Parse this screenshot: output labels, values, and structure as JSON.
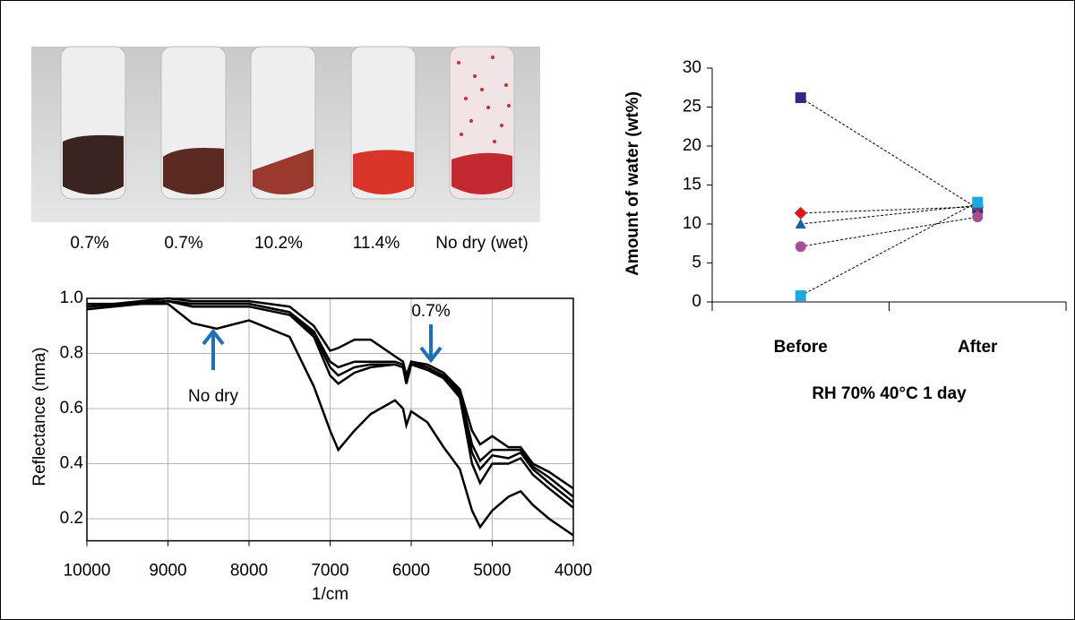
{
  "photo": {
    "labels": [
      "0.7%",
      "0.7%",
      "10.2%",
      "11.4%",
      "No dry (wet)"
    ]
  },
  "chart_data": [
    {
      "type": "line",
      "xlabel": "1/cm",
      "ylabel": "Reflectance (nma)",
      "x": [
        10000,
        9000,
        8700,
        8400,
        8000,
        7500,
        7200,
        7000,
        6900,
        6700,
        6500,
        6200,
        6100,
        6060,
        6000,
        5800,
        5600,
        5400,
        5250,
        5150,
        5000,
        4800,
        4650,
        4500,
        4300,
        4000
      ],
      "series": [
        {
          "color": "#000000",
          "values": [
            0.98,
            0.98,
            0.91,
            0.89,
            0.92,
            0.86,
            0.68,
            0.52,
            0.45,
            0.52,
            0.58,
            0.63,
            0.6,
            0.54,
            0.59,
            0.55,
            0.46,
            0.38,
            0.23,
            0.17,
            0.23,
            0.28,
            0.3,
            0.25,
            0.2,
            0.14
          ]
        },
        {
          "color": "#000000",
          "values": [
            0.97,
            1.0,
            0.99,
            0.99,
            0.99,
            0.97,
            0.9,
            0.81,
            0.82,
            0.85,
            0.85,
            0.79,
            0.77,
            0.72,
            0.77,
            0.76,
            0.73,
            0.67,
            0.52,
            0.47,
            0.5,
            0.46,
            0.46,
            0.4,
            0.37,
            0.31
          ]
        },
        {
          "color": "#000000",
          "values": [
            0.97,
            0.99,
            0.98,
            0.98,
            0.98,
            0.95,
            0.88,
            0.77,
            0.75,
            0.77,
            0.77,
            0.77,
            0.76,
            0.7,
            0.77,
            0.75,
            0.72,
            0.66,
            0.47,
            0.41,
            0.45,
            0.45,
            0.45,
            0.39,
            0.35,
            0.28
          ]
        },
        {
          "color": "#000000",
          "values": [
            0.97,
            0.99,
            0.98,
            0.98,
            0.98,
            0.95,
            0.87,
            0.75,
            0.72,
            0.75,
            0.76,
            0.76,
            0.75,
            0.69,
            0.76,
            0.75,
            0.71,
            0.65,
            0.44,
            0.38,
            0.43,
            0.42,
            0.44,
            0.38,
            0.33,
            0.26
          ]
        },
        {
          "color": "#000000",
          "values": [
            0.96,
            0.99,
            0.97,
            0.97,
            0.97,
            0.94,
            0.86,
            0.72,
            0.69,
            0.73,
            0.75,
            0.76,
            0.75,
            0.69,
            0.76,
            0.74,
            0.71,
            0.64,
            0.4,
            0.33,
            0.4,
            0.4,
            0.42,
            0.36,
            0.31,
            0.24
          ]
        }
      ],
      "xlim": [
        10000,
        4000
      ],
      "ylim": [
        0.12,
        1.0
      ],
      "xticks": [
        10000,
        9000,
        8000,
        7000,
        6000,
        5000,
        4000
      ],
      "yticks": [
        {
          "value": 1,
          "label": "1.0"
        },
        0.8,
        0.6,
        0.4,
        0.2
      ],
      "grid": true,
      "annotations": [
        "0.7%",
        "No dry"
      ],
      "annotation_color": "#1f6fb5"
    },
    {
      "type": "line",
      "xlabel": "RH 70% 40°C 1 day",
      "ylabel": "Amount of water (wt%)",
      "categories": [
        "Before",
        "After"
      ],
      "series": [
        {
          "color": "#2e2a85",
          "marker": "square",
          "values": [
            26.2,
            12.0
          ]
        },
        {
          "color": "#d7191c",
          "marker": "diamond",
          "values": [
            11.4,
            12.2
          ]
        },
        {
          "color": "#1f5fa8",
          "marker": "triangle",
          "values": [
            10.0,
            12.4
          ]
        },
        {
          "color": "#a8508f",
          "marker": "circle",
          "values": [
            7.1,
            10.9
          ]
        },
        {
          "color": "#1fa8e0",
          "marker": "square",
          "values": [
            0.8,
            12.8
          ]
        }
      ],
      "ylim": [
        0,
        30
      ],
      "yticks": [
        0,
        5,
        10,
        15,
        20,
        25,
        30
      ],
      "grid": false
    }
  ]
}
